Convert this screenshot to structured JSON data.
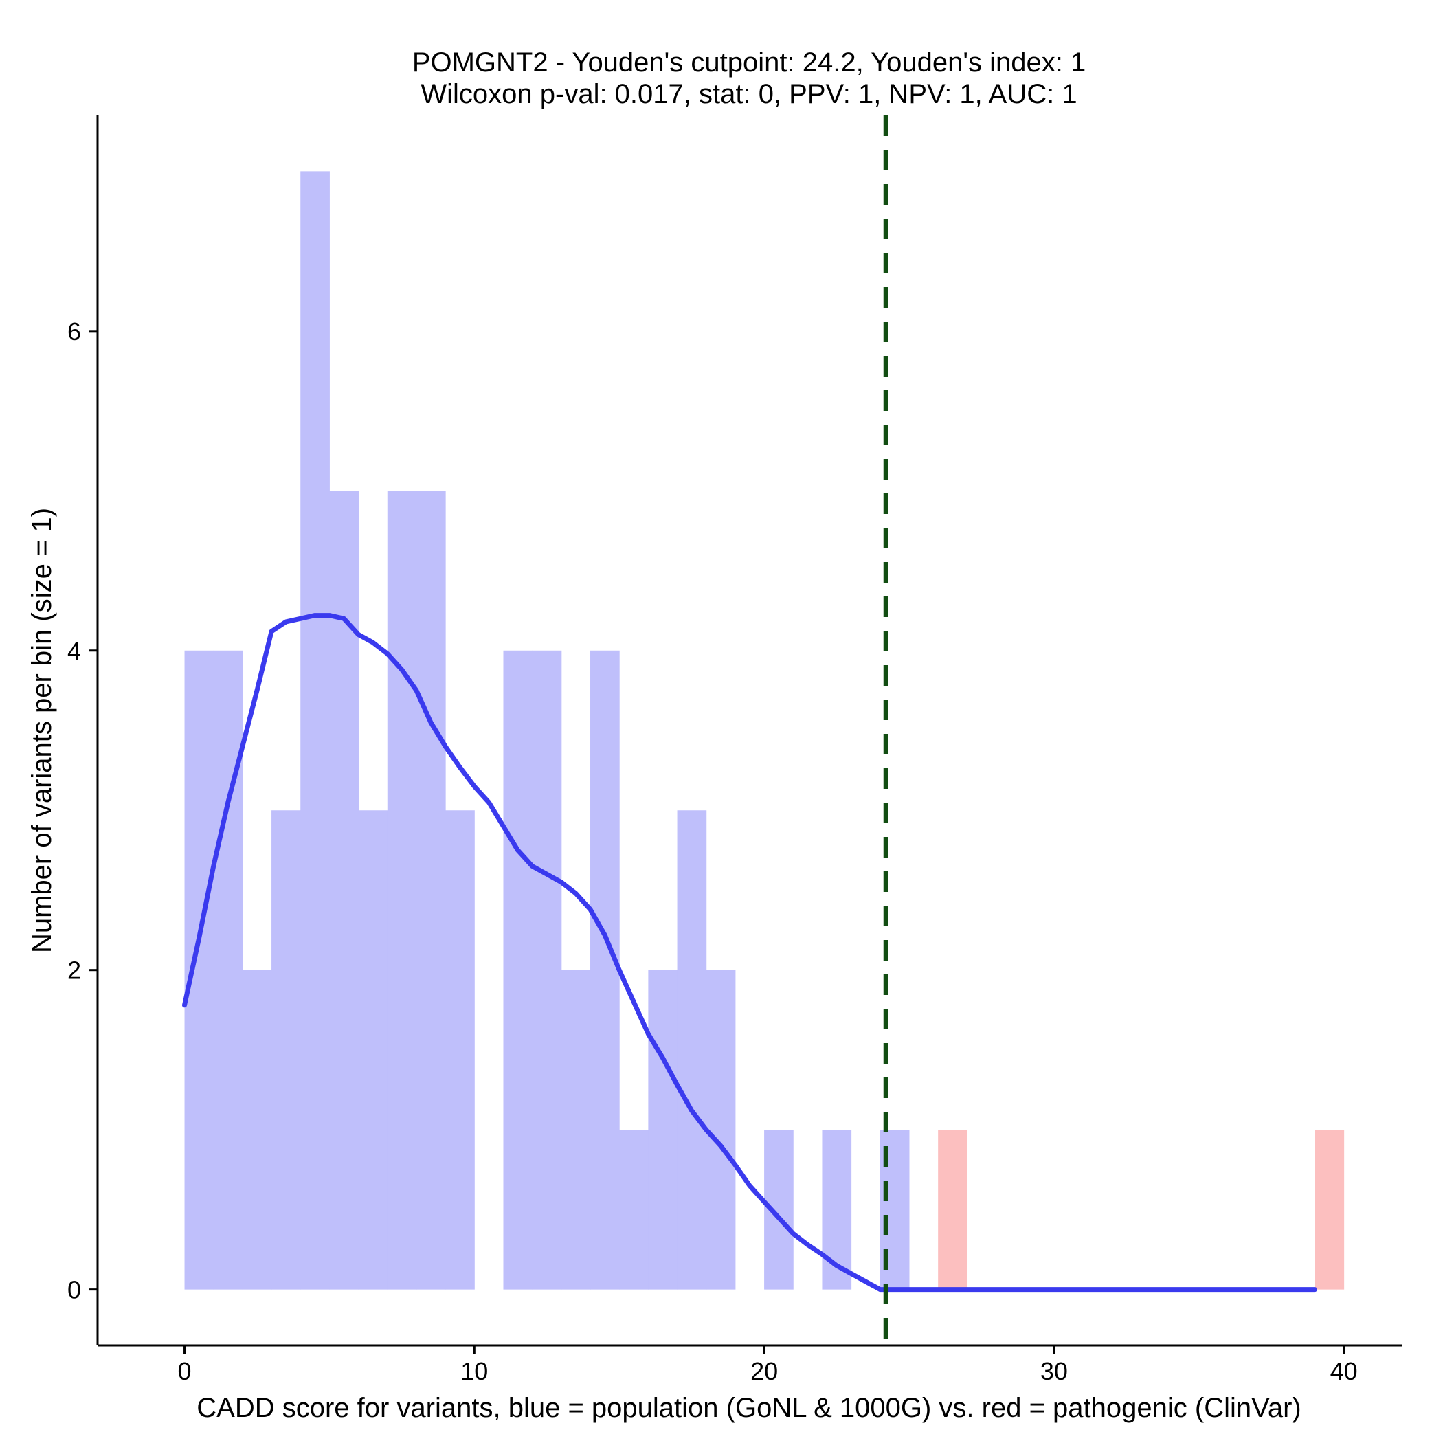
{
  "chart_data": {
    "type": "bar",
    "title_line1": "POMGNT2 - Youden's cutpoint: 24.2, Youden's index: 1",
    "title_line2": "Wilcoxon p-val: 0.017, stat: 0, PPV: 1, NPV: 1, AUC: 1",
    "xlabel": "CADD score for variants, blue = population (GoNL & 1000G) vs. red = pathogenic (ClinVar)",
    "ylabel": "Number of variants per bin (size = 1)",
    "xlim": [
      -3,
      42
    ],
    "ylim": [
      -0.35,
      7.35
    ],
    "x_ticks": [
      0,
      10,
      20,
      30,
      40
    ],
    "y_ticks": [
      0,
      2,
      4,
      6
    ],
    "bin_size": 1,
    "cutpoint": 24.2,
    "colors": {
      "population": "#bfbffb",
      "pathogenic": "#fcbfbf",
      "density": "#3a3aee",
      "cutpoint": "#124d12",
      "axis": "#000000"
    },
    "series": [
      {
        "name": "population (GoNL & 1000G)",
        "bins": [
          {
            "start": 0,
            "count": 4
          },
          {
            "start": 1,
            "count": 4
          },
          {
            "start": 2,
            "count": 2
          },
          {
            "start": 3,
            "count": 3
          },
          {
            "start": 4,
            "count": 7
          },
          {
            "start": 5,
            "count": 5
          },
          {
            "start": 6,
            "count": 3
          },
          {
            "start": 7,
            "count": 5
          },
          {
            "start": 8,
            "count": 5
          },
          {
            "start": 9,
            "count": 3
          },
          {
            "start": 11,
            "count": 4
          },
          {
            "start": 12,
            "count": 4
          },
          {
            "start": 13,
            "count": 2
          },
          {
            "start": 14,
            "count": 4
          },
          {
            "start": 15,
            "count": 1
          },
          {
            "start": 16,
            "count": 2
          },
          {
            "start": 17,
            "count": 3
          },
          {
            "start": 18,
            "count": 2
          },
          {
            "start": 20,
            "count": 1
          },
          {
            "start": 22,
            "count": 1
          },
          {
            "start": 24,
            "count": 1
          }
        ]
      },
      {
        "name": "pathogenic (ClinVar)",
        "bins": [
          {
            "start": 26,
            "count": 1
          },
          {
            "start": 39,
            "count": 1
          }
        ]
      }
    ],
    "density_curve": {
      "x": [
        0,
        0.5,
        1,
        1.5,
        2,
        2.5,
        3,
        3.5,
        4,
        4.5,
        5,
        5.5,
        6,
        6.5,
        7,
        7.5,
        8,
        8.5,
        9,
        9.5,
        10,
        10.5,
        11,
        11.5,
        12,
        12.5,
        13,
        13.5,
        14,
        14.5,
        15,
        15.5,
        16,
        16.5,
        17,
        17.5,
        18,
        18.5,
        19,
        19.5,
        20,
        20.5,
        21,
        21.5,
        22,
        22.5,
        23,
        23.5,
        24,
        24.5,
        25,
        25.5,
        26,
        27,
        28,
        29,
        29.4,
        30,
        32,
        34,
        36,
        38,
        39
      ],
      "y": [
        1.78,
        2.2,
        2.65,
        3.05,
        3.4,
        3.75,
        4.12,
        4.18,
        4.2,
        4.22,
        4.22,
        4.2,
        4.1,
        4.05,
        3.98,
        3.88,
        3.75,
        3.55,
        3.4,
        3.27,
        3.15,
        3.05,
        2.9,
        2.75,
        2.65,
        2.6,
        2.55,
        2.48,
        2.38,
        2.22,
        2.0,
        1.8,
        1.6,
        1.45,
        1.28,
        1.12,
        1.0,
        0.9,
        0.78,
        0.65,
        0.55,
        0.45,
        0.35,
        0.28,
        0.22,
        0.15,
        0.1,
        0.05,
        0.0,
        0.0,
        0.0,
        0.0,
        0.0,
        0.0,
        0.0,
        0.0,
        0.0,
        0.0,
        0.0,
        0.0,
        0.0,
        0.0,
        0.0
      ]
    }
  }
}
